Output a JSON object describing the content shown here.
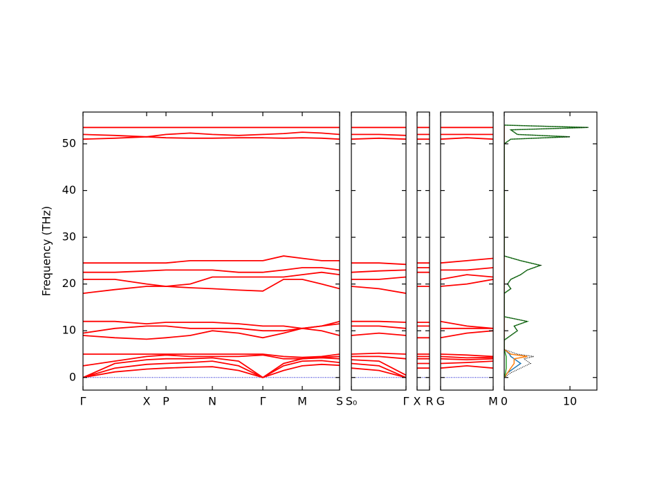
{
  "chart_data": [
    {
      "type": "line",
      "ylabel": "Frequency (THz)",
      "ylim": [
        -2.7,
        56.8
      ],
      "yticks": [
        0,
        10,
        20,
        30,
        40,
        50
      ],
      "color": "#ff0000",
      "reference_line": {
        "value": 0,
        "color": "#0000cc"
      },
      "xlim": [
        0,
        3.71
      ],
      "xticks": [
        {
          "value": 0,
          "label": "Γ"
        },
        {
          "value": 0.92,
          "label": "X"
        },
        {
          "value": 1.2,
          "label": "P"
        },
        {
          "value": 1.87,
          "label": "N"
        },
        {
          "value": 2.6,
          "label": "Γ"
        },
        {
          "value": 3.17,
          "label": "M"
        },
        {
          "value": 3.71,
          "label": "S"
        }
      ],
      "x": [
        0,
        0.46,
        0.92,
        1.2,
        1.55,
        1.87,
        2.25,
        2.6,
        2.9,
        3.17,
        3.45,
        3.71
      ],
      "series": [
        {
          "values": [
            0,
            1.2,
            1.8,
            2,
            2.2,
            2.3,
            1.5,
            0,
            1.5,
            2.5,
            2.8,
            2.6
          ]
        },
        {
          "values": [
            0,
            2,
            2.8,
            3,
            3.2,
            3.5,
            2.5,
            0,
            2.5,
            3.5,
            3.6,
            3.2
          ]
        },
        {
          "values": [
            0,
            3,
            3.8,
            4,
            4,
            4.2,
            3.5,
            0,
            3,
            4,
            4.2,
            4
          ]
        },
        {
          "values": [
            2.5,
            3.5,
            4.5,
            4.8,
            4.5,
            4.5,
            4.5,
            4.8,
            4,
            4,
            4.3,
            4.5
          ]
        },
        {
          "values": [
            5,
            5,
            5,
            5,
            5,
            5,
            5,
            5,
            4.5,
            4.3,
            4.5,
            5
          ]
        },
        {
          "values": [
            9,
            8.5,
            8.2,
            8.5,
            9,
            10,
            9.5,
            8.5,
            9.5,
            10.5,
            10,
            9
          ]
        },
        {
          "values": [
            9.5,
            10.5,
            11,
            11,
            10.5,
            10.5,
            10.5,
            10,
            10,
            10.5,
            11,
            11.5
          ]
        },
        {
          "values": [
            12,
            12,
            11.5,
            11.8,
            11.8,
            11.8,
            11.5,
            11,
            11,
            10.5,
            11,
            12
          ]
        },
        {
          "values": [
            18,
            18.8,
            19.5,
            19.5,
            19.2,
            19,
            18.7,
            18.5,
            21,
            21,
            20,
            19
          ]
        },
        {
          "values": [
            21,
            21,
            20,
            19.5,
            20,
            21.5,
            21.5,
            21.5,
            21.5,
            22,
            22.5,
            22
          ]
        },
        {
          "values": [
            22.5,
            22.5,
            22.8,
            23,
            23,
            23,
            22.5,
            22.5,
            23,
            23.5,
            23.5,
            23
          ]
        },
        {
          "values": [
            24.5,
            24.5,
            24.5,
            24.5,
            25,
            25,
            25,
            25,
            26,
            25.5,
            25,
            25
          ]
        },
        {
          "values": [
            51,
            51.2,
            51.5,
            51.3,
            51.2,
            51.2,
            51.3,
            51.3,
            51.2,
            51.3,
            51.2,
            51
          ]
        },
        {
          "values": [
            52,
            51.8,
            51.5,
            52,
            52.3,
            52,
            51.8,
            52,
            52.2,
            52.5,
            52.3,
            52
          ]
        },
        {
          "values": [
            53.5,
            53.5,
            53.5,
            53.5,
            53.5,
            53.5,
            53.5,
            53.5,
            53.5,
            53.5,
            53.5,
            53.5
          ]
        }
      ]
    },
    {
      "type": "line",
      "color": "#ff0000",
      "reference_line": {
        "value": 0,
        "color": "#0000cc"
      },
      "xlim": [
        0,
        0.79
      ],
      "xticks": [
        {
          "value": 0,
          "label": "S₀"
        },
        {
          "value": 0.79,
          "label": "Γ"
        }
      ],
      "x": [
        0,
        0.4,
        0.79
      ],
      "series": [
        {
          "values": [
            2,
            1.5,
            0
          ]
        },
        {
          "values": [
            3,
            2.5,
            0
          ]
        },
        {
          "values": [
            3.8,
            3.5,
            0.5
          ]
        },
        {
          "values": [
            4.5,
            4.5,
            4
          ]
        },
        {
          "values": [
            5,
            5.2,
            5
          ]
        },
        {
          "values": [
            9,
            9.5,
            9
          ]
        },
        {
          "values": [
            11,
            11,
            10.5
          ]
        },
        {
          "values": [
            12,
            12,
            11.8
          ]
        },
        {
          "values": [
            19.5,
            19,
            18
          ]
        },
        {
          "values": [
            21,
            21,
            21.5
          ]
        },
        {
          "values": [
            22.5,
            22.8,
            23
          ]
        },
        {
          "values": [
            24.5,
            24.5,
            24.2
          ]
        },
        {
          "values": [
            51,
            51.2,
            51
          ]
        },
        {
          "values": [
            52,
            52,
            51.8
          ]
        },
        {
          "values": [
            53.5,
            53.5,
            53.5
          ]
        }
      ]
    },
    {
      "type": "line",
      "color": "#ff0000",
      "reference_line": {
        "value": 0,
        "color": "#0000cc"
      },
      "xlim": [
        0,
        0.18
      ],
      "xticks": [
        {
          "value": 0,
          "label": "X"
        },
        {
          "value": 0.18,
          "label": "R"
        }
      ],
      "x": [
        0,
        0.18
      ],
      "series": [
        {
          "values": [
            2,
            2
          ]
        },
        {
          "values": [
            3,
            3
          ]
        },
        {
          "values": [
            4,
            4
          ]
        },
        {
          "values": [
            4.5,
            4.5
          ]
        },
        {
          "values": [
            5,
            5
          ]
        },
        {
          "values": [
            8.5,
            8.5
          ]
        },
        {
          "values": [
            11,
            11
          ]
        },
        {
          "values": [
            11.8,
            11.8
          ]
        },
        {
          "values": [
            19.5,
            19.5
          ]
        },
        {
          "values": [
            22.5,
            22.5
          ]
        },
        {
          "values": [
            23.5,
            23.5
          ]
        },
        {
          "values": [
            24.5,
            24.5
          ]
        },
        {
          "values": [
            51,
            51
          ]
        },
        {
          "values": [
            52,
            52
          ]
        },
        {
          "values": [
            53.5,
            53.5
          ]
        }
      ]
    },
    {
      "type": "line",
      "color": "#ff0000",
      "reference_line": {
        "value": 0,
        "color": "#0000cc"
      },
      "xlim": [
        0,
        0.76
      ],
      "xticks": [
        {
          "value": 0,
          "label": "G"
        },
        {
          "value": 0.76,
          "label": "M"
        }
      ],
      "x": [
        0,
        0.38,
        0.76
      ],
      "series": [
        {
          "values": [
            2,
            2.5,
            2
          ]
        },
        {
          "values": [
            3,
            3.2,
            3.5
          ]
        },
        {
          "values": [
            4,
            3.8,
            4
          ]
        },
        {
          "values": [
            4.5,
            4.2,
            4.3
          ]
        },
        {
          "values": [
            5,
            4.8,
            4.5
          ]
        },
        {
          "values": [
            8.5,
            9.5,
            10
          ]
        },
        {
          "values": [
            10.5,
            10.5,
            10.5
          ]
        },
        {
          "values": [
            12,
            11,
            10.5
          ]
        },
        {
          "values": [
            19.5,
            20,
            21
          ]
        },
        {
          "values": [
            21,
            22,
            21.5
          ]
        },
        {
          "values": [
            23,
            23,
            23.5
          ]
        },
        {
          "values": [
            24.5,
            25,
            25.5
          ]
        },
        {
          "values": [
            51,
            51.3,
            51
          ]
        },
        {
          "values": [
            52,
            52,
            52
          ]
        },
        {
          "values": [
            53.5,
            53.5,
            53.5
          ]
        }
      ]
    },
    {
      "type": "dos",
      "xlim": [
        0,
        14.1
      ],
      "xticks": [
        0,
        10
      ],
      "y": [
        0,
        1,
        2,
        3,
        4,
        4.5,
        5,
        6,
        8,
        9,
        10,
        11,
        12,
        13,
        18,
        19,
        20,
        21,
        22,
        23,
        24,
        25,
        26,
        50,
        51,
        51.5,
        52,
        53,
        53.5,
        54
      ],
      "series": [
        {
          "color": "#1f77b4",
          "values": [
            0,
            0.5,
            1.5,
            2.5,
            1.5,
            1,
            0.8,
            0,
            0,
            0,
            0,
            0,
            0,
            0,
            0,
            0,
            0,
            0,
            0,
            0,
            0,
            0,
            0,
            0,
            0,
            0,
            0,
            0,
            0,
            0
          ]
        },
        {
          "color": "#ff7f0e",
          "values": [
            0,
            0.5,
            1,
            1.5,
            1.5,
            3.5,
            1,
            0,
            0,
            0,
            0,
            0,
            0,
            0,
            0,
            0,
            0,
            0,
            0,
            0,
            0,
            0,
            0,
            0,
            0,
            0,
            0,
            0,
            0,
            0
          ]
        },
        {
          "color": "#2ca02c",
          "values": [
            0,
            0.2,
            0.3,
            0.3,
            0.3,
            0.3,
            0.2,
            0,
            0,
            1,
            2,
            1.5,
            3.5,
            0,
            0,
            1,
            0.5,
            1,
            2.5,
            3.5,
            5.5,
            2.5,
            0,
            0,
            1,
            10,
            2,
            1,
            12.8,
            0
          ]
        },
        {
          "color": "#000000",
          "linestyle": "dotted",
          "values": [
            0,
            1,
            2.5,
            4,
            3,
            4.5,
            2,
            0,
            0,
            1,
            2,
            1.5,
            3.5,
            0,
            0,
            1,
            0.5,
            1,
            2.5,
            3.5,
            5.5,
            2.5,
            0,
            0,
            1,
            10,
            2,
            1,
            12.8,
            0
          ]
        }
      ]
    }
  ]
}
